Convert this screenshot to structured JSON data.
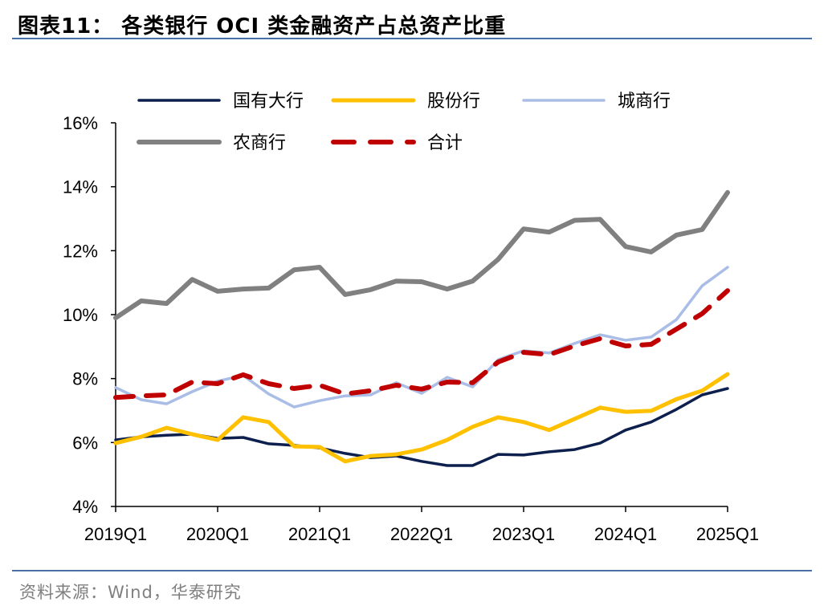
{
  "header": {
    "title": "图表11：  各类银行 OCI 类金融资产占总资产比重"
  },
  "footer": {
    "source": "资料来源：Wind，华泰研究"
  },
  "chart_data": {
    "type": "line",
    "title": "",
    "xlabel": "",
    "ylabel": "",
    "ylim": [
      4,
      16
    ],
    "yticks": [
      "4%",
      "6%",
      "8%",
      "10%",
      "12%",
      "14%",
      "16%"
    ],
    "ytick_values": [
      4,
      6,
      8,
      10,
      12,
      14,
      16
    ],
    "xtick_labels": [
      "2019Q1",
      "2020Q1",
      "2021Q1",
      "2022Q1",
      "2023Q1",
      "2024Q1",
      "2025Q1"
    ],
    "grid": false,
    "legend": "top",
    "x": [
      "2019Q1",
      "2019Q2",
      "2019Q3",
      "2019Q4",
      "2020Q1",
      "2020Q2",
      "2020Q3",
      "2020Q4",
      "2021Q1",
      "2021Q2",
      "2021Q3",
      "2021Q4",
      "2022Q1",
      "2022Q2",
      "2022Q3",
      "2022Q4",
      "2023Q1",
      "2023Q2",
      "2023Q3",
      "2023Q4",
      "2024Q1",
      "2024Q2",
      "2024Q3",
      "2024Q4",
      "2025Q1"
    ],
    "series": [
      {
        "name": "国有大行",
        "color": "#0c1f4d",
        "style": "solid",
        "values": [
          6.08,
          6.18,
          6.23,
          6.26,
          6.13,
          6.16,
          5.96,
          5.91,
          5.83,
          5.66,
          5.53,
          5.58,
          5.41,
          5.28,
          5.28,
          5.63,
          5.61,
          5.71,
          5.78,
          5.98,
          6.39,
          6.64,
          7.04,
          7.49,
          7.69
        ]
      },
      {
        "name": "股份行",
        "color": "#ffc000",
        "style": "solid",
        "values": [
          5.98,
          6.18,
          6.46,
          6.26,
          6.08,
          6.79,
          6.64,
          5.88,
          5.86,
          5.41,
          5.58,
          5.63,
          5.78,
          6.08,
          6.49,
          6.79,
          6.64,
          6.39,
          6.74,
          7.09,
          6.96,
          6.99,
          7.36,
          7.62,
          8.14
        ]
      },
      {
        "name": "城商行",
        "color": "#a9bde6",
        "style": "solid",
        "values": [
          7.72,
          7.34,
          7.21,
          7.59,
          7.92,
          8.1,
          7.52,
          7.11,
          7.31,
          7.46,
          7.49,
          7.87,
          7.54,
          8.04,
          7.74,
          8.59,
          8.87,
          8.8,
          9.1,
          9.37,
          9.2,
          9.3,
          9.85,
          10.9,
          11.48
        ]
      },
      {
        "name": "农商行",
        "color": "#808080",
        "style": "solid",
        "values": [
          9.9,
          10.43,
          10.35,
          11.1,
          10.73,
          10.8,
          10.83,
          11.4,
          11.48,
          10.63,
          10.78,
          11.05,
          11.03,
          10.8,
          11.05,
          11.73,
          12.68,
          12.58,
          12.95,
          12.98,
          12.13,
          11.96,
          12.49,
          12.66,
          13.82
        ]
      },
      {
        "name": "合计",
        "color": "#c00000",
        "style": "dashed",
        "values": [
          7.41,
          7.46,
          7.49,
          7.89,
          7.84,
          8.12,
          7.84,
          7.69,
          7.79,
          7.52,
          7.62,
          7.79,
          7.67,
          7.89,
          7.87,
          8.52,
          8.82,
          8.75,
          9.02,
          9.25,
          9.02,
          9.07,
          9.55,
          10.03,
          10.75
        ]
      }
    ]
  }
}
